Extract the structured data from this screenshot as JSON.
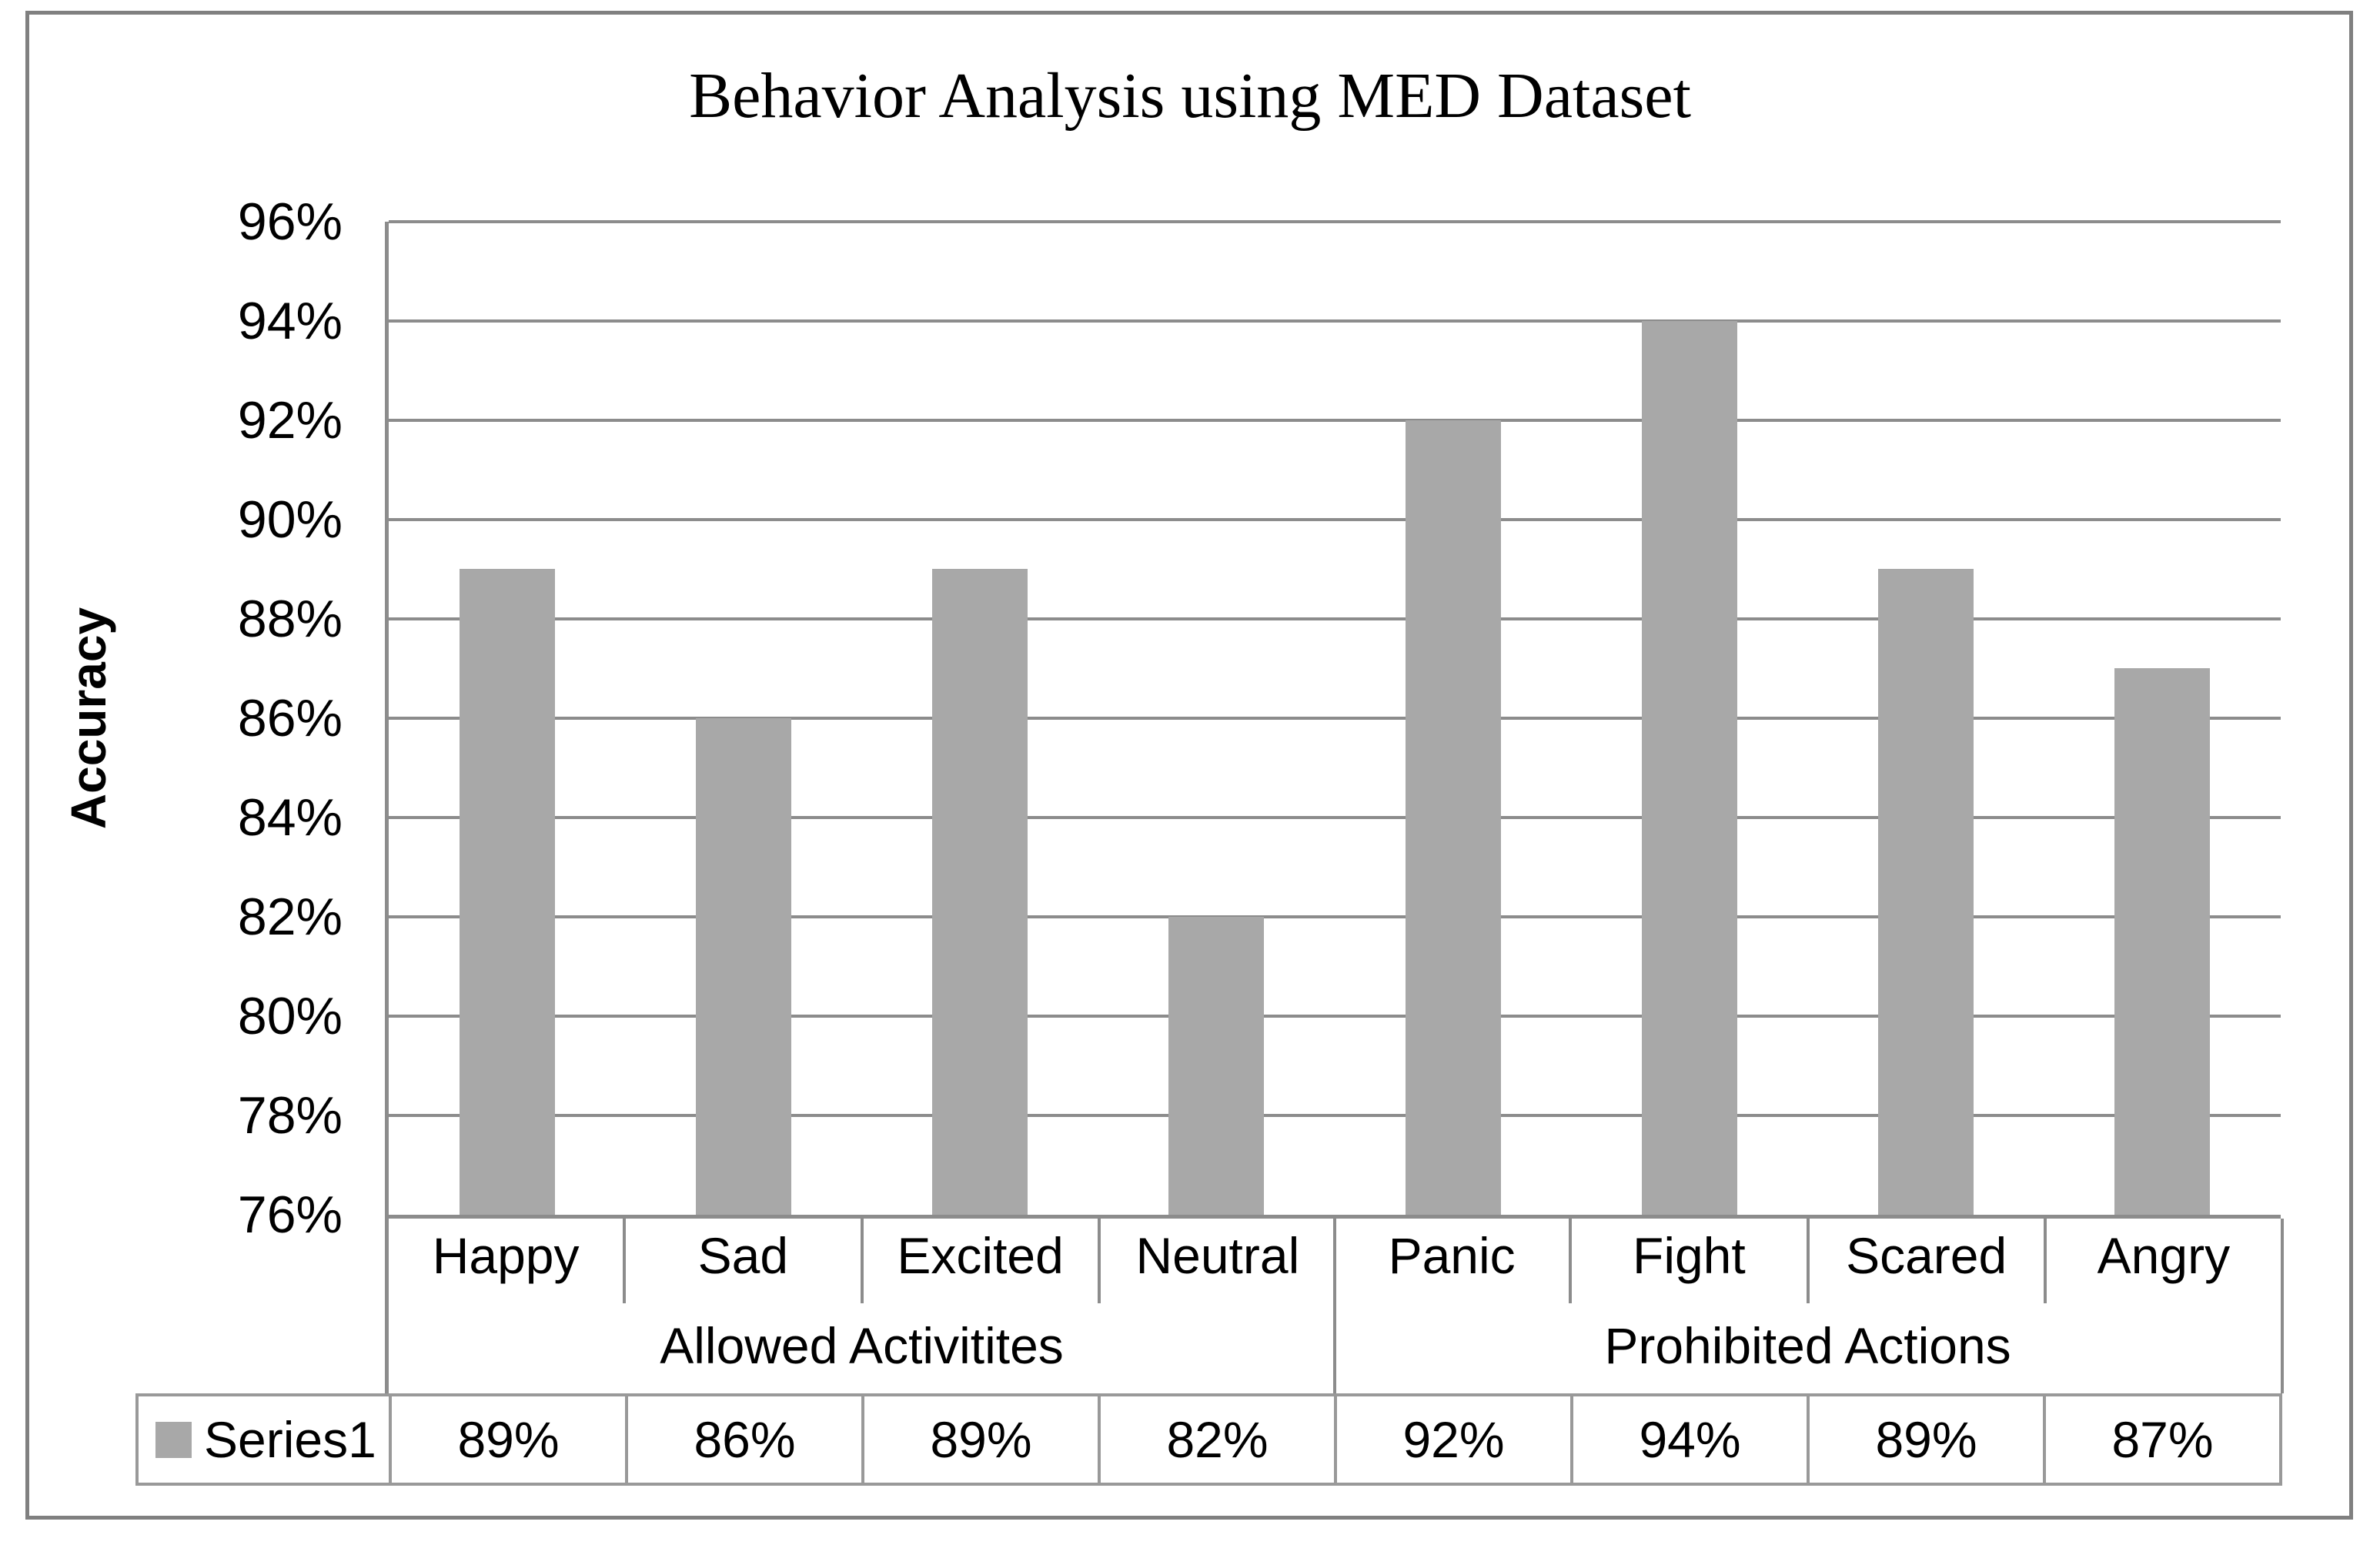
{
  "chart": {
    "title": "Behavior Analysis using MED Dataset",
    "y_axis": {
      "label": "Accuracy",
      "min": 76,
      "max": 96,
      "step": 2,
      "tick_suffix": "%",
      "tick_labels": [
        "96%",
        "94%",
        "92%",
        "90%",
        "88%",
        "86%",
        "84%",
        "82%",
        "80%",
        "78%",
        "76%"
      ]
    },
    "groups": [
      {
        "label": "Allowed Activitites",
        "categories": [
          "Happy",
          "Sad",
          "Excited",
          "Neutral"
        ]
      },
      {
        "label": "Prohibited Actions",
        "categories": [
          "Panic",
          "Fight",
          "Scared",
          "Angry"
        ]
      }
    ],
    "legend": {
      "series_name": "Series1"
    },
    "values_display": [
      "89%",
      "86%",
      "89%",
      "82%",
      "92%",
      "94%",
      "89%",
      "87%"
    ]
  },
  "chart_data": {
    "type": "bar",
    "title": "Behavior Analysis using MED Dataset",
    "categories": [
      "Happy",
      "Sad",
      "Excited",
      "Neutral",
      "Panic",
      "Fight",
      "Scared",
      "Angry"
    ],
    "category_groups": [
      {
        "label": "Allowed Activitites",
        "span": [
          "Happy",
          "Sad",
          "Excited",
          "Neutral"
        ]
      },
      {
        "label": "Prohibited Actions",
        "span": [
          "Panic",
          "Fight",
          "Scared",
          "Angry"
        ]
      }
    ],
    "series": [
      {
        "name": "Series1",
        "values": [
          89,
          86,
          89,
          82,
          92,
          94,
          89,
          87
        ],
        "unit": "%"
      }
    ],
    "xlabel": "",
    "ylabel": "Accuracy",
    "ylim": [
      76,
      96
    ],
    "ytick_step": 2,
    "grid": true,
    "legend_position": "bottom-data-table"
  },
  "colors": {
    "bar": "#A8A8A8",
    "gridline": "#8C8C8C",
    "table_border": "#999999",
    "frame_border": "#808080",
    "text": "#000000",
    "background": "#ffffff"
  }
}
